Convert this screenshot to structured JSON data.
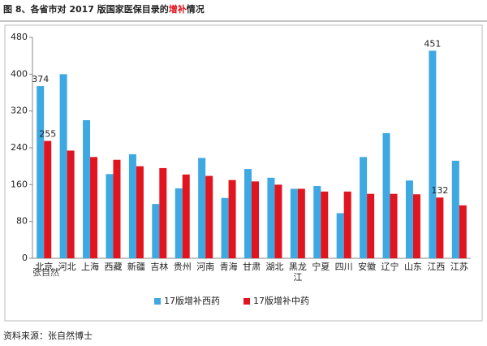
{
  "chart_data": {
    "type": "bar",
    "title_parts": [
      "图 8、各省市对 2017 版国家医保目录的",
      "增补",
      "情况"
    ],
    "categories": [
      "北京",
      "河北",
      "上海",
      "西藏",
      "新疆",
      "吉林",
      "贵州",
      "河南",
      "青海",
      "甘肃",
      "湖北",
      "黑龙江",
      "宁夏",
      "四川",
      "安徽",
      "辽宁",
      "山东",
      "江西",
      "江苏"
    ],
    "series": [
      {
        "name": "17版增补西药",
        "color": "#3ea8e2",
        "values": [
          374,
          400,
          300,
          183,
          226,
          118,
          152,
          218,
          131,
          194,
          175,
          151,
          157,
          98,
          220,
          272,
          169,
          451,
          212
        ],
        "value_labels": [
          "374",
          null,
          null,
          null,
          null,
          null,
          null,
          null,
          null,
          null,
          null,
          null,
          null,
          null,
          null,
          null,
          null,
          "451",
          null
        ]
      },
      {
        "name": "17版增补中药",
        "color": "#e1151f",
        "values": [
          255,
          234,
          220,
          214,
          200,
          196,
          182,
          179,
          170,
          167,
          160,
          151,
          145,
          145,
          140,
          140,
          139,
          132,
          115
        ],
        "value_labels": [
          "255",
          null,
          null,
          null,
          null,
          null,
          null,
          null,
          null,
          null,
          null,
          null,
          null,
          null,
          null,
          null,
          null,
          "132",
          null
        ]
      }
    ],
    "ylim": [
      0,
      480
    ],
    "yticks": [
      0,
      80,
      160,
      240,
      320,
      400,
      480
    ],
    "grid": false,
    "legend": "bottom",
    "watermark": "张自然",
    "source": "资料来源：张自然博士"
  }
}
